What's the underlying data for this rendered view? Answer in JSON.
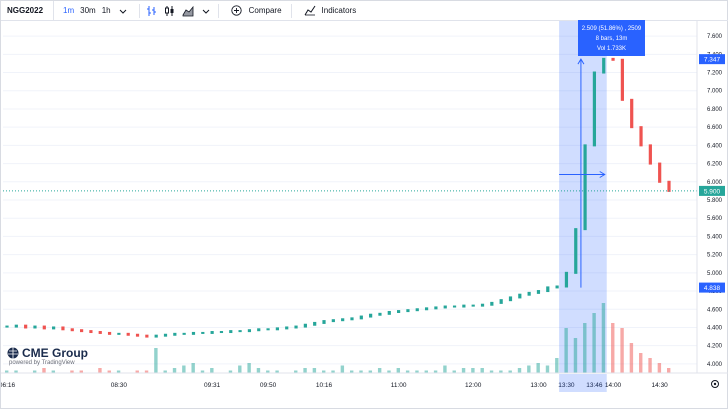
{
  "toolbar": {
    "symbol": "NGG2022",
    "intervals": [
      {
        "label": "1m",
        "active": true
      },
      {
        "label": "30m",
        "active": false
      },
      {
        "label": "1h",
        "active": false
      }
    ],
    "compare_label": "Compare",
    "indicators_label": "Indicators",
    "icons": [
      "chevron-down-icon",
      "bar-style-icon",
      "candles-icon",
      "area-style-icon",
      "plus-circle-icon",
      "indicators-icon"
    ]
  },
  "logo": {
    "name": "CME Group",
    "powered": "powered by TradingView"
  },
  "tooltip": {
    "line1": "2.509 (51.86%) , 2509",
    "line2": "8 bars, 13m",
    "line3": "Vol 1.733K"
  },
  "colors": {
    "up": "#26a69a",
    "down": "#ef5350",
    "accent": "#2962ff",
    "selection": "rgba(41,98,255,0.22)",
    "last_price": "#26a69a"
  },
  "price_axis": {
    "ticks": [
      "7.600",
      "7.400",
      "7.200",
      "7.000",
      "6.800",
      "6.600",
      "6.400",
      "6.200",
      "6.000",
      "5.800",
      "5.600",
      "5.400",
      "5.200",
      "5.000",
      "4.800",
      "4.600",
      "4.400",
      "4.200",
      "4.000"
    ],
    "labels": [
      {
        "text": "7.347",
        "value": 7.347
      },
      {
        "text": "5.900",
        "value": 5.9
      },
      {
        "text": "4.838",
        "value": 4.838
      }
    ]
  },
  "time_axis": {
    "ticks": [
      "06:16",
      "08:30",
      "09:31",
      "09:50",
      "10:16",
      "11:00",
      "12:00",
      "13:00",
      "13:30",
      "13:46",
      "14:00",
      "14:30"
    ]
  },
  "chart_data": {
    "type": "line",
    "ylim": [
      3.9,
      7.7
    ],
    "series": [
      {
        "values": [
          4.41,
          4.42,
          4.4,
          4.41,
          4.39,
          4.4,
          4.38,
          4.37,
          4.36,
          4.35,
          4.34,
          4.33,
          4.33,
          4.32,
          4.31,
          4.3,
          4.31,
          4.32,
          4.33,
          4.33,
          4.34,
          4.34,
          4.35,
          4.35,
          4.36,
          4.36,
          4.37,
          4.38,
          4.38,
          4.39,
          4.4,
          4.41,
          4.43,
          4.45,
          4.47,
          4.48,
          4.49,
          4.5,
          4.52,
          4.54,
          4.55,
          4.57,
          4.58,
          4.59,
          4.6,
          4.61,
          4.62,
          4.63,
          4.63,
          4.64,
          4.64,
          4.65,
          4.67,
          4.7,
          4.73,
          4.76,
          4.78,
          4.8,
          4.84,
          4.85,
          5.0,
          5.48,
          6.4,
          7.2,
          7.35,
          7.34,
          6.9,
          6.6,
          6.4,
          6.2,
          6.0,
          5.9
        ]
      }
    ],
    "volume": [
      1,
      1,
      0,
      1,
      2,
      1,
      0,
      1,
      1,
      0,
      2,
      1,
      1,
      0,
      1,
      1,
      10,
      1,
      2,
      3,
      4,
      1,
      2,
      0,
      1,
      3,
      4,
      2,
      1,
      1,
      0,
      1,
      2,
      2,
      1,
      1,
      3,
      1,
      1,
      1,
      2,
      1,
      2,
      1,
      1,
      1,
      1,
      3,
      1,
      2,
      2,
      2,
      1,
      1,
      1,
      2,
      3,
      4,
      3,
      6,
      18,
      14,
      20,
      24,
      28,
      20,
      18,
      12,
      8,
      6,
      4,
      2
    ]
  }
}
